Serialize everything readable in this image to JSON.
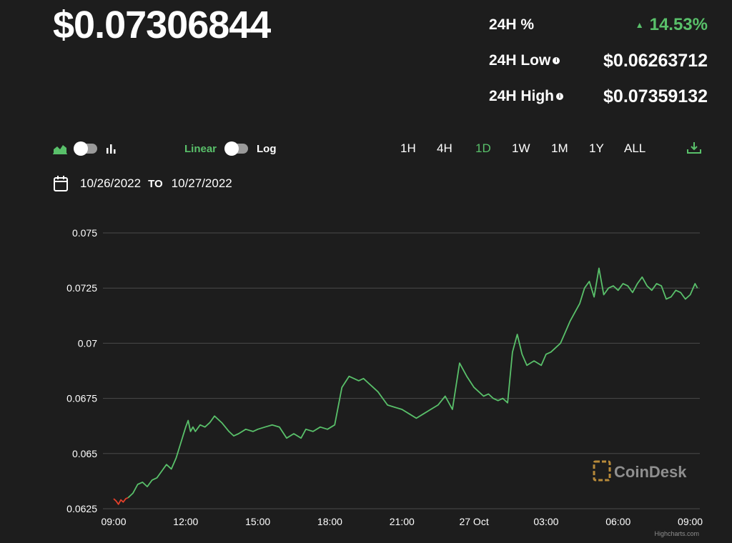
{
  "header": {
    "price": "$0.07306844",
    "stats": [
      {
        "label": "24H %",
        "value": "14.53%",
        "direction": "up"
      },
      {
        "label": "24H Low",
        "value": "$0.06263712"
      },
      {
        "label": "24H High",
        "value": "$0.07359132"
      }
    ]
  },
  "controls": {
    "chart_type_icons": [
      "area-chart-icon",
      "bar-chart-icon"
    ],
    "scale_linear": "Linear",
    "scale_log": "Log",
    "ranges": [
      "1H",
      "4H",
      "1D",
      "1W",
      "1M",
      "1Y",
      "ALL"
    ],
    "active_range": "1D",
    "download_icon": "download-icon"
  },
  "dates": {
    "from": "10/26/2022",
    "to_label": "TO",
    "to": "10/27/2022"
  },
  "colors": {
    "up": "#59c06a",
    "down": "#e2402b",
    "background": "#1d1d1d",
    "grid": "#4a4a4a"
  },
  "watermark": "CoinDesk",
  "credit": "Highcharts.com",
  "chart_data": {
    "type": "line",
    "x_tick_labels": [
      "09:00",
      "12:00",
      "15:00",
      "18:00",
      "21:00",
      "27 Oct",
      "03:00",
      "06:00",
      "09:00"
    ],
    "y_tick_labels": [
      "0.075",
      "0.0725",
      "0.07",
      "0.0675",
      "0.065",
      "0.0625"
    ],
    "ylim": [
      0.0625,
      0.075
    ],
    "xlim": [
      0,
      24.4
    ],
    "x_unit": "hours since 10/26/2022 09:00",
    "grid": "horizontal",
    "series": [
      {
        "name": "",
        "segment": "down",
        "x": [
          0.0,
          0.1,
          0.2,
          0.3,
          0.4,
          0.5,
          0.6
        ],
        "y": [
          0.06295,
          0.06285,
          0.0627,
          0.0629,
          0.0628,
          0.06295,
          0.063
        ]
      },
      {
        "name": "",
        "segment": "up",
        "x": [
          0.6,
          0.8,
          1.0,
          1.2,
          1.4,
          1.6,
          1.8,
          2.0,
          2.2,
          2.4,
          2.6,
          2.8,
          3.0,
          3.1,
          3.2,
          3.3,
          3.4,
          3.6,
          3.8,
          4.0,
          4.2,
          4.5,
          4.8,
          5.0,
          5.2,
          5.5,
          5.8,
          6.0,
          6.3,
          6.6,
          6.9,
          7.2,
          7.5,
          7.8,
          8.0,
          8.3,
          8.6,
          8.9,
          9.2,
          9.5,
          9.8,
          10.0,
          10.2,
          10.4,
          10.6,
          10.8,
          11.0,
          11.2,
          11.4,
          11.7,
          12.0,
          12.3,
          12.6,
          12.9,
          13.2,
          13.5,
          13.8,
          14.1,
          14.4,
          14.7,
          15.0,
          15.2,
          15.4,
          15.6,
          15.8,
          16.0,
          16.2,
          16.4,
          16.6,
          16.8,
          17.0,
          17.2,
          17.5,
          17.8,
          18.0,
          18.2,
          18.4,
          18.6,
          18.8,
          19.0,
          19.2,
          19.4,
          19.6,
          19.8,
          20.0,
          20.2,
          20.4,
          20.6,
          20.8,
          21.0,
          21.2,
          21.4,
          21.6,
          21.8,
          22.0,
          22.2,
          22.4,
          22.6,
          22.8,
          23.0,
          23.2,
          23.4,
          23.6,
          23.8,
          24.0,
          24.2,
          24.3
        ],
        "y": [
          0.063,
          0.0632,
          0.0636,
          0.0637,
          0.0635,
          0.0638,
          0.0639,
          0.0642,
          0.0645,
          0.0643,
          0.0648,
          0.0655,
          0.0662,
          0.0665,
          0.066,
          0.0662,
          0.066,
          0.0663,
          0.0662,
          0.0664,
          0.0667,
          0.0664,
          0.066,
          0.0658,
          0.0659,
          0.0661,
          0.066,
          0.0661,
          0.0662,
          0.0663,
          0.0662,
          0.0657,
          0.0659,
          0.0657,
          0.0661,
          0.066,
          0.0662,
          0.0661,
          0.0663,
          0.068,
          0.0685,
          0.0684,
          0.0683,
          0.0684,
          0.0682,
          0.068,
          0.0678,
          0.0675,
          0.0672,
          0.0671,
          0.067,
          0.0668,
          0.0666,
          0.0668,
          0.067,
          0.0672,
          0.0676,
          0.067,
          0.0691,
          0.0685,
          0.068,
          0.0678,
          0.0676,
          0.0677,
          0.0675,
          0.0674,
          0.0675,
          0.0673,
          0.0696,
          0.0704,
          0.0695,
          0.069,
          0.0692,
          0.069,
          0.0695,
          0.0696,
          0.0698,
          0.07,
          0.0705,
          0.071,
          0.0714,
          0.0718,
          0.0725,
          0.0728,
          0.0721,
          0.0734,
          0.0722,
          0.0725,
          0.0726,
          0.0724,
          0.0727,
          0.0726,
          0.0723,
          0.0727,
          0.073,
          0.0726,
          0.0724,
          0.0727,
          0.0726,
          0.072,
          0.0721,
          0.0724,
          0.0723,
          0.072,
          0.0722,
          0.0727,
          0.0725
        ]
      }
    ]
  }
}
